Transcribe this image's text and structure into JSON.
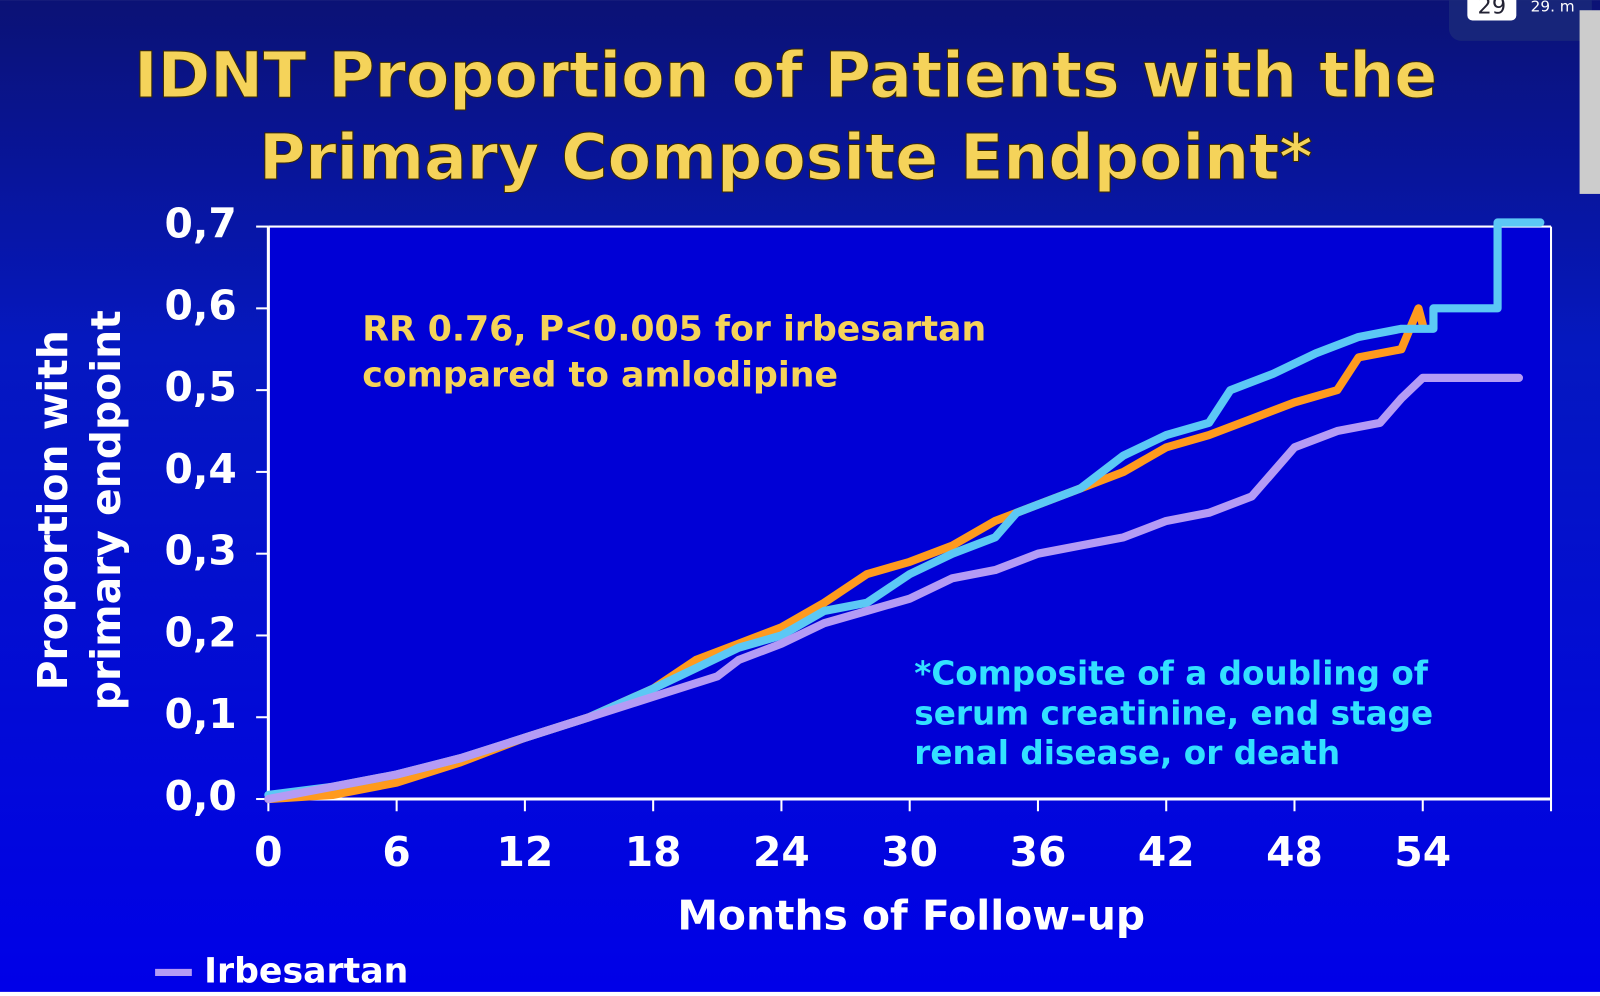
{
  "chart_data": {
    "type": "line",
    "title": [
      "IDNT Proportion of Patients with the",
      "Primary Composite Endpoint*"
    ],
    "ylabel": [
      "Proportion with",
      "primary endpoint"
    ],
    "xlabel": "Months of Follow-up",
    "annotation": [
      "RR 0.76, P<0.005 for irbesartan",
      "compared to amlodipine"
    ],
    "footnote": [
      "*Composite of a doubling of",
      "serum creatinine, end stage",
      "renal disease, or death"
    ],
    "xlim": [
      0,
      60
    ],
    "xticks": [
      0,
      6,
      12,
      18,
      24,
      30,
      36,
      42,
      48,
      54
    ],
    "ylim": [
      0,
      0.7
    ],
    "yticks": [
      {
        "value": 0,
        "label": "0,0"
      },
      {
        "value": 0.1,
        "label": "0,1"
      },
      {
        "value": 0.2,
        "label": "0,2"
      },
      {
        "value": 0.3,
        "label": "0,3"
      },
      {
        "value": 0.4,
        "label": "0,4"
      },
      {
        "value": 0.5,
        "label": "0,5"
      },
      {
        "value": 0.6,
        "label": "0,6"
      },
      {
        "value": 0.7,
        "label": "0,7"
      }
    ],
    "grid": false,
    "legend": "bottom-left",
    "series": [
      {
        "color": "#ff9a1e",
        "x": [
          0,
          3,
          6,
          9,
          12,
          15,
          18,
          20,
          22,
          24,
          26,
          28,
          30,
          32,
          34,
          36,
          38,
          40,
          42,
          44,
          46,
          48,
          50,
          51,
          53,
          53.8,
          54
        ],
        "values": [
          0,
          0.005,
          0.02,
          0.045,
          0.075,
          0.1,
          0.135,
          0.17,
          0.19,
          0.21,
          0.24,
          0.275,
          0.29,
          0.31,
          0.34,
          0.36,
          0.38,
          0.4,
          0.43,
          0.445,
          0.465,
          0.485,
          0.5,
          0.54,
          0.55,
          0.6,
          0.58
        ]
      },
      {
        "color": "#5cc8f5",
        "x": [
          0,
          3,
          6,
          9,
          12,
          15,
          18,
          20,
          22,
          24,
          26,
          28,
          30,
          32,
          34,
          35,
          38,
          40,
          42,
          44,
          45,
          47,
          49,
          51,
          53,
          54.5,
          54.5,
          57.5,
          57.5,
          59.5
        ],
        "values": [
          0.005,
          0.015,
          0.03,
          0.05,
          0.075,
          0.1,
          0.135,
          0.16,
          0.185,
          0.2,
          0.23,
          0.24,
          0.275,
          0.3,
          0.32,
          0.35,
          0.38,
          0.42,
          0.445,
          0.46,
          0.5,
          0.52,
          0.545,
          0.565,
          0.575,
          0.575,
          0.6,
          0.6,
          0.705,
          0.705
        ]
      },
      {
        "name": "Irbesartan",
        "color": "#b49bf5",
        "x": [
          0,
          3,
          6,
          9,
          12,
          15,
          18,
          21,
          22,
          24,
          26,
          28,
          30,
          32,
          34,
          36,
          38,
          40,
          42,
          44,
          46,
          47,
          48,
          50,
          52,
          53,
          54,
          58.5
        ],
        "values": [
          0,
          0.015,
          0.03,
          0.05,
          0.075,
          0.1,
          0.125,
          0.15,
          0.17,
          0.19,
          0.215,
          0.23,
          0.245,
          0.27,
          0.28,
          0.3,
          0.31,
          0.32,
          0.34,
          0.35,
          0.37,
          0.4,
          0.43,
          0.45,
          0.46,
          0.49,
          0.515,
          0.515
        ]
      }
    ]
  },
  "overlay": {
    "badge": "29",
    "text": "29. m"
  }
}
